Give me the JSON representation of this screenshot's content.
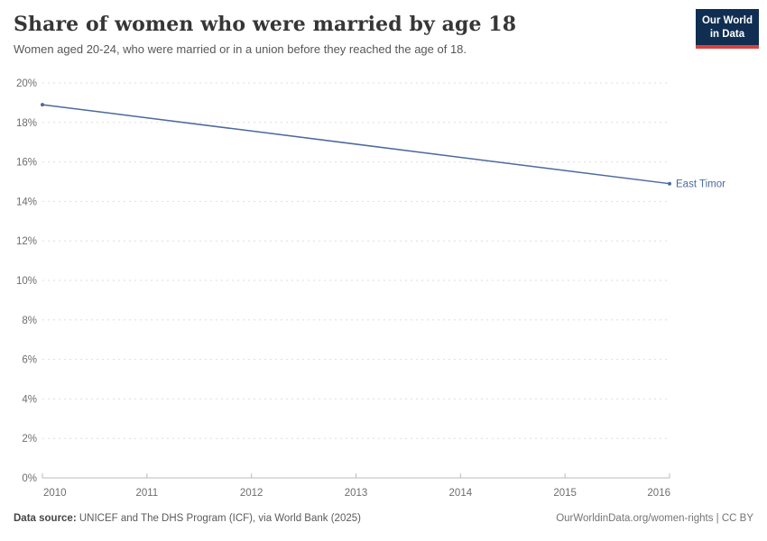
{
  "header": {
    "logo": {
      "line1": "Our World",
      "line2": "in Data"
    }
  },
  "footer": {
    "source_label": "Data source:",
    "source_text": " UNICEF and The DHS Program (ICF), via World Bank (2025)",
    "url": "OurWorldinData.org/women-rights",
    "license": " | CC BY"
  },
  "colors": {
    "series_blue": "#4C6A9C",
    "logo_navy": "#0F2E52",
    "logo_red": "#D8423C",
    "grid": "#DDDDDD",
    "axis": "#BBBBBB",
    "tick_text": "#6E6E6E"
  },
  "chart_data": {
    "type": "line",
    "title": "Share of women who were married by age 18",
    "subtitle": "Women aged 20-24, who were married or in a union before they reached the age of 18.",
    "xlabel": "",
    "ylabel": "",
    "xlim": [
      2010,
      2016
    ],
    "ylim": [
      0,
      20
    ],
    "x_ticks": [
      2010,
      2011,
      2012,
      2013,
      2014,
      2015,
      2016
    ],
    "y_ticks": [
      0,
      2,
      4,
      6,
      8,
      10,
      12,
      14,
      16,
      18,
      20
    ],
    "y_tick_suffix": "%",
    "grid": true,
    "legend": "end-of-line entity label",
    "series": [
      {
        "name": "East Timor",
        "color": "#4C6A9C",
        "points": [
          {
            "x": 2010,
            "y": 18.9
          },
          {
            "x": 2016,
            "y": 14.9
          }
        ]
      }
    ]
  }
}
